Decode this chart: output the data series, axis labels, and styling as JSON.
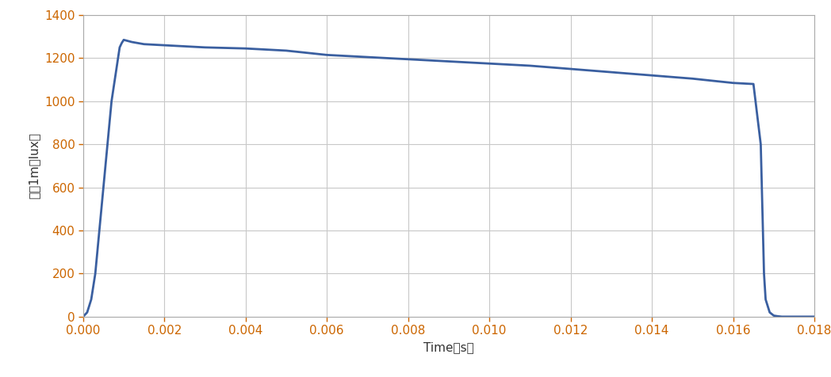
{
  "title": "",
  "xlabel": "Time（s）",
  "ylabel": "照度1m（lux）",
  "line_color": "#3a5fa0",
  "line_width": 2.0,
  "background_color": "#ffffff",
  "grid_color": "#c8c8c8",
  "tick_color": "#cc6600",
  "xlabel_color": "#333333",
  "ylabel_color": "#333333",
  "xlim": [
    0.0,
    0.018
  ],
  "ylim": [
    0,
    1400
  ],
  "xticks": [
    0.0,
    0.002,
    0.004,
    0.006,
    0.008,
    0.01,
    0.012,
    0.014,
    0.016,
    0.018
  ],
  "yticks": [
    0,
    200,
    400,
    600,
    800,
    1000,
    1200,
    1400
  ],
  "x_data": [
    0.0,
    0.0001,
    0.0002,
    0.0003,
    0.0005,
    0.0007,
    0.0009,
    0.00095,
    0.001,
    0.0012,
    0.0015,
    0.002,
    0.003,
    0.004,
    0.005,
    0.006,
    0.007,
    0.008,
    0.009,
    0.01,
    0.011,
    0.012,
    0.013,
    0.014,
    0.015,
    0.016,
    0.0163,
    0.0165,
    0.01668,
    0.01672,
    0.01676,
    0.0168,
    0.0169,
    0.017,
    0.0171,
    0.0172,
    0.018
  ],
  "y_data": [
    0,
    20,
    80,
    200,
    600,
    1000,
    1250,
    1270,
    1285,
    1275,
    1265,
    1260,
    1250,
    1245,
    1235,
    1215,
    1205,
    1195,
    1185,
    1175,
    1165,
    1150,
    1135,
    1120,
    1105,
    1085,
    1082,
    1080,
    800,
    500,
    200,
    80,
    20,
    5,
    2,
    0,
    0
  ]
}
